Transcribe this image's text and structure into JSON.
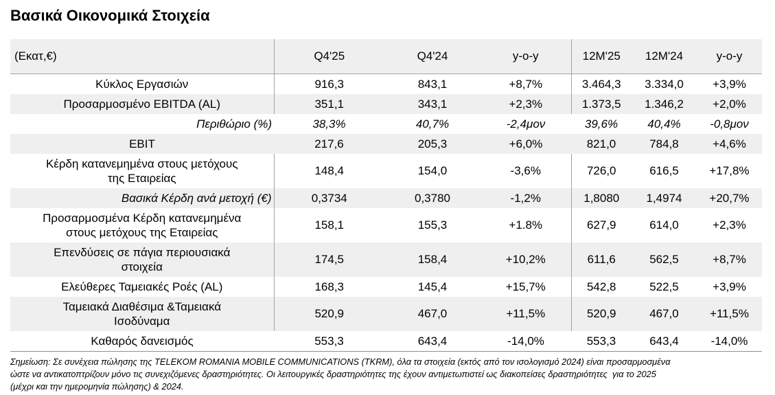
{
  "page": {
    "title": "Βασικά Οικονομικά Στοιχεία"
  },
  "colors": {
    "row_shade": "#efefef",
    "header_bg": "#efefef",
    "border": "#a3a3a3",
    "border_dark": "#8f8f8f",
    "text": "#000000"
  },
  "table": {
    "columns": [
      "(Εκατ,€)",
      "Q4'25",
      "Q4'24",
      "y-o-y",
      "12M'25",
      "12M'24",
      "y-o-y"
    ],
    "rows": [
      {
        "label": "Κύκλος Εργασιών",
        "values": [
          "916,3",
          "843,1",
          "+8,7%",
          "3.464,3",
          "3.334,0",
          "+3,9%"
        ],
        "shaded": false,
        "vlines": true,
        "italic_label": false,
        "italic_values": false,
        "label_align": "left"
      },
      {
        "label": "Προσαρμοσμένο EBITDA (AL)",
        "values": [
          "351,1",
          "343,1",
          "+2,3%",
          "1.373,5",
          "1.346,2",
          "+2,0%"
        ],
        "shaded": true,
        "vlines": true,
        "italic_label": false,
        "italic_values": false,
        "label_align": "left"
      },
      {
        "label": "Περιθώριο (%)",
        "values": [
          "38,3%",
          "40,7%",
          "-2,4μον",
          "39,6%",
          "40,4%",
          "-0,8μον"
        ],
        "shaded": false,
        "vlines": false,
        "italic_label": true,
        "italic_values": true,
        "label_align": "right"
      },
      {
        "label": "EBIT",
        "values": [
          "217,6",
          "205,3",
          "+6,0%",
          "821,0",
          "784,8",
          "+4,6%"
        ],
        "shaded": true,
        "vlines": false,
        "italic_label": false,
        "italic_values": false,
        "label_align": "left"
      },
      {
        "label": "Κέρδη κατανεμημένα στους μετόχους\nτης Εταιρείας",
        "values": [
          "148,4",
          "154,0",
          "-3,6%",
          "726,0",
          "616,5",
          "+17,8%"
        ],
        "shaded": false,
        "vlines": true,
        "italic_label": false,
        "italic_values": false,
        "label_align": "left"
      },
      {
        "label": "Βασικά Κέρδη ανά μετοχή (€)",
        "values": [
          "0,3734",
          "0,3780",
          "-1,2%",
          "1,8080",
          "1,4974",
          "+20,7%"
        ],
        "shaded": true,
        "vlines": true,
        "italic_label": true,
        "italic_values": false,
        "label_align": "right"
      },
      {
        "label": "Προσαρμοσμένα Κέρδη κατανεμημένα\nστους μετόχους της Εταιρείας",
        "values": [
          "158,1",
          "155,3",
          "+1.8%",
          "627,9",
          "614,0",
          "+2,3%"
        ],
        "shaded": false,
        "vlines": true,
        "italic_label": false,
        "italic_values": false,
        "label_align": "left"
      },
      {
        "label": "Επενδύσεις σε πάγια περιουσιακά\nστοιχεία",
        "values": [
          "174,5",
          "158,4",
          "+10,2%",
          "611,6",
          "562,5",
          "+8,7%"
        ],
        "shaded": true,
        "vlines": true,
        "italic_label": false,
        "italic_values": false,
        "label_align": "left"
      },
      {
        "label": "Ελεύθερες Ταμειακές Ροές (AL)",
        "values": [
          "168,3",
          "145,4",
          "+15,7%",
          "542,8",
          "522,5",
          "+3,9%"
        ],
        "shaded": false,
        "vlines": true,
        "italic_label": false,
        "italic_values": false,
        "label_align": "left"
      },
      {
        "label": "Ταμειακά Διαθέσιμα &Ταμειακά\nΙσοδύναμα",
        "values": [
          "520,9",
          "467,0",
          "+11,5%",
          "520,9",
          "467,0",
          "+11,5%"
        ],
        "shaded": true,
        "vlines": true,
        "italic_label": false,
        "italic_values": false,
        "label_align": "left"
      },
      {
        "label": "Καθαρός δανεισμός",
        "values": [
          "553,3",
          "643,4",
          "-14,0%",
          "553,3",
          "643,4",
          "-14,0%"
        ],
        "shaded": false,
        "vlines": false,
        "italic_label": false,
        "italic_values": false,
        "label_align": "left"
      }
    ]
  },
  "note": {
    "lines": [
      "Σημείωση: Σε συνέχεια πώλησης της TELEKOM ROMANIA MOBILE COMMUNICATIONS (TKRM), όλα τα στοιχεία (εκτός από τον ισολογισμό 2024) είναι προσαρμοσμένα",
      "ώστε να αντικατοπτρίζουν μόνο τις συνεχιζόμενες δραστηριότητες. Οι λειτουργικές δραστηριότητες της έχουν αντιμετωπιστεί ως διακοπείσες δραστηριότητες  για το 2025",
      "(μέχρι και την ημερομηνία πώλησης) & 2024."
    ]
  }
}
